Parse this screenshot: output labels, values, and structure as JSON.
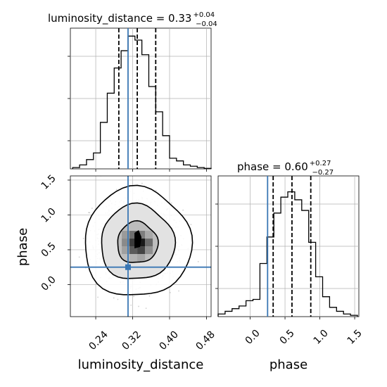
{
  "colors": {
    "truth": "#3a77b4",
    "hist": "#000000",
    "grid": "#b0b0b0",
    "scatter": "#9a9a9a"
  },
  "chart_data": [
    {
      "type": "histogram",
      "title": {
        "main": "luminosity_distance = 0.33",
        "sup": "+0.04",
        "sub": "−0.04"
      },
      "xlim": [
        0.185,
        0.49
      ],
      "bins_x": [
        0.19,
        0.205,
        0.22,
        0.235,
        0.25,
        0.265,
        0.28,
        0.295,
        0.31,
        0.325,
        0.34,
        0.355,
        0.37,
        0.385,
        0.4,
        0.415,
        0.43,
        0.445,
        0.46,
        0.475,
        0.49
      ],
      "counts": [
        0.01,
        0.03,
        0.07,
        0.12,
        0.35,
        0.57,
        0.76,
        0.89,
        1.0,
        0.97,
        0.86,
        0.62,
        0.43,
        0.25,
        0.08,
        0.06,
        0.03,
        0.02,
        0.01,
        0.004
      ],
      "quantiles": [
        0.29,
        0.33,
        0.37
      ],
      "truth": 0.31,
      "grid": true
    },
    {
      "type": "histogram",
      "title": {
        "main": "phase = 0.60",
        "sup": "+0.27",
        "sub": "−0.27"
      },
      "xlim": [
        -0.46,
        1.56
      ],
      "xticks": [
        "0.0",
        "0.5",
        "1.0",
        "1.5"
      ],
      "xtick_values": [
        0.0,
        0.5,
        1.0,
        1.5
      ],
      "xlabel": "phase",
      "bins_x": [
        -0.46,
        -0.36,
        -0.26,
        -0.16,
        -0.06,
        0.04,
        0.14,
        0.24,
        0.34,
        0.44,
        0.54,
        0.64,
        0.74,
        0.84,
        0.94,
        1.04,
        1.14,
        1.24,
        1.34,
        1.44,
        1.54
      ],
      "counts": [
        0.02,
        0.04,
        0.06,
        0.08,
        0.12,
        0.13,
        0.4,
        0.6,
        0.78,
        0.9,
        0.94,
        0.88,
        0.8,
        0.56,
        0.3,
        0.15,
        0.07,
        0.04,
        0.02,
        0.01
      ],
      "quantiles": [
        0.33,
        0.6,
        0.87
      ],
      "truth": 0.25,
      "grid": true
    },
    {
      "type": "scatter-contour",
      "xlim": [
        0.185,
        0.49
      ],
      "ylim": [
        -0.46,
        1.56
      ],
      "xticks": [
        "0.24",
        "0.32",
        "0.40",
        "0.48"
      ],
      "xtick_values": [
        0.24,
        0.32,
        0.4,
        0.48
      ],
      "yticks": [
        "0.0",
        "0.5",
        "1.0",
        "1.5"
      ],
      "ytick_values": [
        0.0,
        0.5,
        1.0,
        1.5
      ],
      "xlabel": "luminosity_distance",
      "ylabel": "phase",
      "center": [
        0.33,
        0.6
      ],
      "spread": [
        0.04,
        0.27
      ],
      "contour_levels": [
        1.1,
        2.0,
        2.9
      ],
      "truth": [
        0.31,
        0.25
      ],
      "grid": true
    }
  ]
}
